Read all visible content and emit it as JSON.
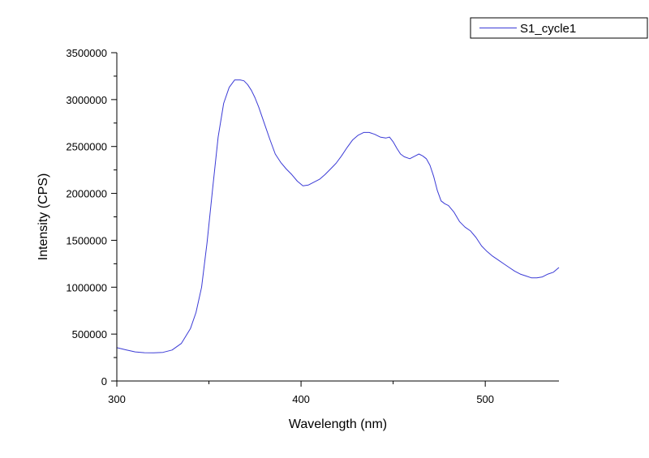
{
  "chart_data": {
    "type": "line",
    "xlabel": "Wavelength (nm)",
    "ylabel": "Intensity (CPS)",
    "xlim": [
      300,
      540
    ],
    "ylim": [
      0,
      3500000
    ],
    "x_ticks": [
      300,
      400,
      500
    ],
    "x_tick_labels": [
      "300",
      "400",
      "500"
    ],
    "y_ticks": [
      0,
      500000,
      1000000,
      1500000,
      2000000,
      2500000,
      3000000,
      3500000
    ],
    "y_tick_labels": [
      "0",
      "500000",
      "1000000",
      "1500000",
      "2000000",
      "2500000",
      "3000000",
      "3500000"
    ],
    "grid": false,
    "legend_position": "top-right",
    "series": [
      {
        "name": "S1_cycle1",
        "color": "#3b3bd6",
        "x": [
          300,
          305,
          310,
          315,
          320,
          325,
          330,
          335,
          340,
          343,
          346,
          349,
          352,
          355,
          358,
          361,
          364,
          367,
          369,
          371,
          373,
          375,
          377,
          380,
          383,
          386,
          389,
          392,
          395,
          398,
          401,
          404,
          407,
          410,
          413,
          416,
          419,
          422,
          425,
          428,
          431,
          434,
          437,
          440,
          443,
          446,
          448,
          450,
          452,
          454,
          456,
          459,
          462,
          464,
          466,
          468,
          470,
          472,
          474,
          476,
          478,
          480,
          483,
          486,
          489,
          492,
          495,
          498,
          501,
          504,
          507,
          510,
          513,
          516,
          519,
          522,
          525,
          528,
          531,
          534,
          537,
          540
        ],
        "values": [
          355000,
          332000,
          310000,
          302000,
          300000,
          305000,
          330000,
          400000,
          560000,
          730000,
          1000000,
          1480000,
          2050000,
          2600000,
          2960000,
          3130000,
          3210000,
          3210000,
          3200000,
          3160000,
          3100000,
          3020000,
          2920000,
          2750000,
          2580000,
          2420000,
          2330000,
          2260000,
          2200000,
          2130000,
          2080000,
          2090000,
          2120000,
          2150000,
          2200000,
          2260000,
          2320000,
          2400000,
          2490000,
          2570000,
          2620000,
          2650000,
          2650000,
          2630000,
          2600000,
          2590000,
          2600000,
          2550000,
          2480000,
          2420000,
          2390000,
          2370000,
          2400000,
          2420000,
          2400000,
          2370000,
          2300000,
          2180000,
          2030000,
          1920000,
          1890000,
          1870000,
          1800000,
          1700000,
          1640000,
          1600000,
          1530000,
          1440000,
          1380000,
          1330000,
          1290000,
          1250000,
          1210000,
          1170000,
          1140000,
          1120000,
          1100000,
          1100000,
          1110000,
          1140000,
          1160000,
          1210000
        ]
      }
    ]
  }
}
